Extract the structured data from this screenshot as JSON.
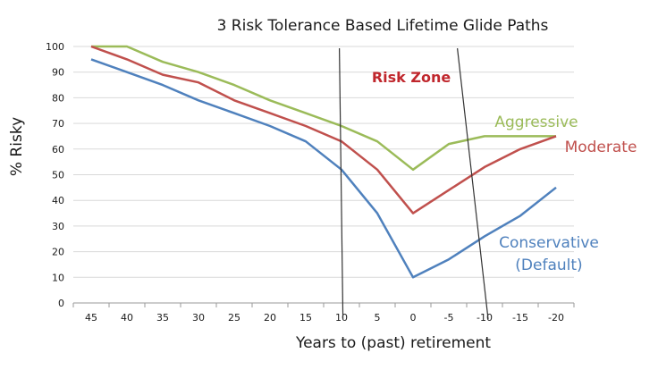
{
  "chart_data": {
    "type": "line",
    "title": "3 Risk Tolerance Based Lifetime Glide Paths",
    "xlabel": "Years to (past) retirement",
    "ylabel": "% Risky",
    "x": [
      45,
      40,
      35,
      30,
      25,
      20,
      15,
      10,
      5,
      0,
      -5,
      -10,
      -15,
      -20
    ],
    "x_tick_labels": [
      "45",
      "40",
      "35",
      "30",
      "25",
      "20",
      "15",
      "10",
      "5",
      "0",
      "-5",
      "-10",
      "-15",
      "-20"
    ],
    "y_ticks": [
      0,
      10,
      20,
      30,
      40,
      50,
      60,
      70,
      80,
      90,
      100
    ],
    "ylim": [
      0,
      100
    ],
    "grid": "horizontal",
    "series": [
      {
        "name": "Aggressive",
        "color": "#9bbb59",
        "values": [
          100,
          100,
          94,
          90,
          85,
          79,
          74,
          69,
          63,
          52,
          62,
          65,
          65,
          65
        ]
      },
      {
        "name": "Moderate",
        "color": "#c0504d",
        "values": [
          100,
          95,
          89,
          86,
          79,
          74,
          69,
          63,
          52,
          35,
          44,
          53,
          60,
          65
        ]
      },
      {
        "name": "Conservative (Default)",
        "name_lines": [
          "Conservative",
          "(Default)"
        ],
        "color": "#4f81bd",
        "values": [
          95,
          90,
          85,
          79,
          74,
          69,
          63,
          52,
          35,
          10,
          17,
          26,
          34,
          45
        ]
      }
    ],
    "annotations": [
      {
        "text": "Risk Zone",
        "color": "#c0272d"
      }
    ],
    "risk_zone_boundaries": [
      {
        "x_top": 10.3,
        "x_bottom": 9.8
      },
      {
        "x_top": -6.2,
        "x_bottom": -10.5
      }
    ]
  }
}
